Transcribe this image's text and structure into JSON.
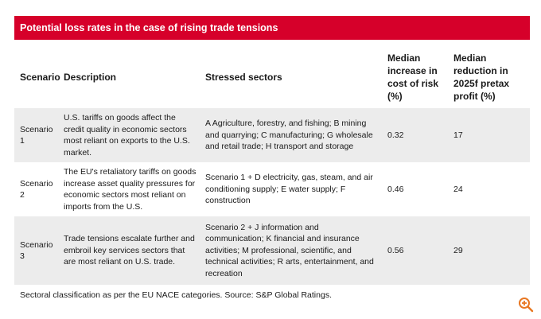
{
  "table": {
    "title": "Potential loss rates in the case of rising trade tensions",
    "headers": {
      "scenario": "Scenario",
      "description": "Description",
      "sectors": "Stressed sectors",
      "cost_of_risk": "Median increase in cost of risk (%)",
      "profit": "Median reduction in 2025f pretax profit (%)"
    },
    "rows": [
      {
        "scenario": "Scenario 1",
        "description": "U.S. tariffs on goods affect the credit quality in economic sectors most reliant on exports to the U.S. market.",
        "sectors": "A Agriculture, forestry, and fishing; B mining and quarrying; C manufacturing; G wholesale and retail trade; H transport and storage",
        "cost_of_risk": "0.32",
        "profit": "17"
      },
      {
        "scenario": "Scenario 2",
        "description": "The EU's retaliatory tariffs on goods increase asset quality pressures for economic sectors most reliant on imports from the U.S.",
        "sectors": "Scenario 1 + D electricity, gas, steam, and air conditioning supply; E water supply; F construction",
        "cost_of_risk": "0.46",
        "profit": "24"
      },
      {
        "scenario": "Scenario 3",
        "description": "Trade tensions escalate further and embroil key services sectors that are most reliant on U.S. trade.",
        "sectors": "Scenario 2 + J information and communication; K financial and insurance activities; M professional, scientific, and technical activities; R arts, entertainment, and recreation",
        "cost_of_risk": "0.56",
        "profit": "29"
      }
    ],
    "footnote": "Sectoral classification as per the EU NACE categories. Source: S&P Global Ratings."
  },
  "colors": {
    "title_bar": "#d6002a",
    "row_shade": "#ececec",
    "zoom_icon": "#e87722"
  },
  "icons": {
    "zoom": "zoom-in-icon"
  }
}
